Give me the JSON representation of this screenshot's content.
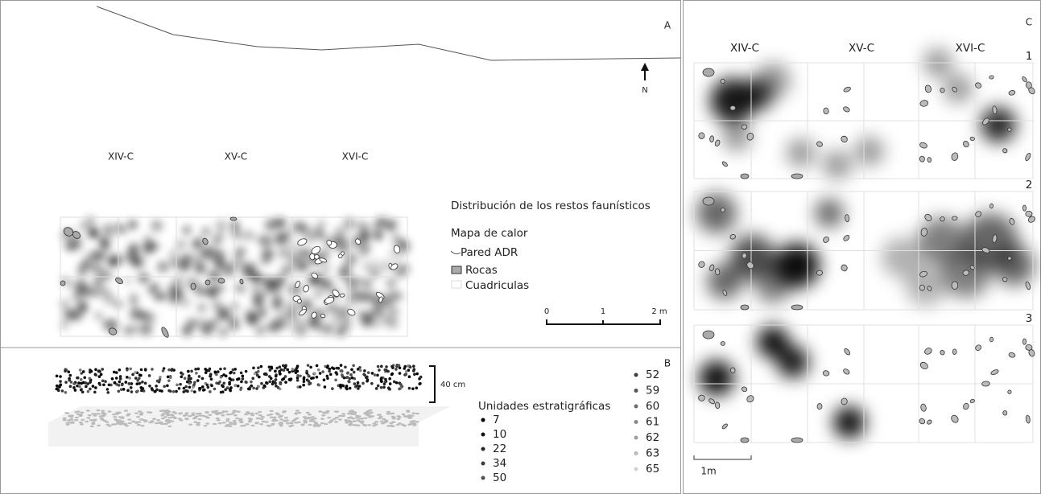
{
  "panel_a": {
    "label": "A",
    "squares": [
      "XIV-C",
      "XV-C",
      "XVI-C"
    ],
    "north": "N",
    "legend": {
      "title": "Distribución de los restos faunísticos",
      "heatmap": "Mapa de calor",
      "wall": "Pared ADR",
      "rocks": "Rocas",
      "grid": "Cuadriculas"
    },
    "scale": [
      "0",
      "1",
      "2 m"
    ]
  },
  "panel_b": {
    "label": "B",
    "height": "40 cm",
    "legend_title": "Unidades estratigráficas",
    "units": [
      7,
      10,
      22,
      34,
      50,
      52,
      59,
      60,
      61,
      62,
      63,
      65
    ]
  },
  "panel_c": {
    "label": "C",
    "squares": [
      "XIV-C",
      "XV-C",
      "XVI-C"
    ],
    "levels": [
      "1",
      "2",
      "3"
    ],
    "scale": "1m"
  }
}
